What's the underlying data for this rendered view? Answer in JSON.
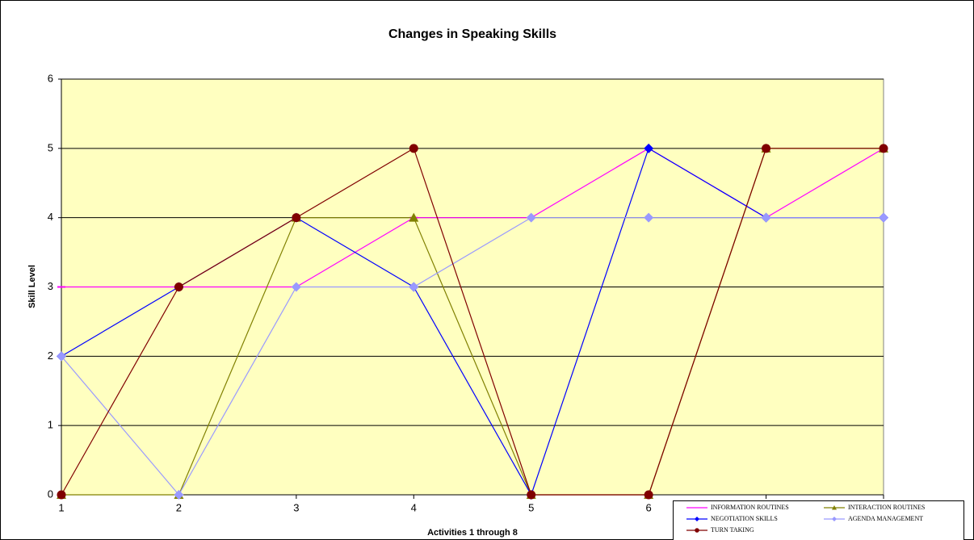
{
  "chart_data": {
    "type": "line",
    "title": "Changes in Speaking Skills",
    "x_label": "Activities 1 through 8",
    "y_label": "Skill Level",
    "x": [
      1,
      2,
      3,
      4,
      5,
      6,
      7,
      8
    ],
    "xlim": [
      1,
      8
    ],
    "xticks": [
      1,
      2,
      3,
      4,
      5,
      6,
      7,
      8
    ],
    "ylim": [
      0,
      6
    ],
    "yticks": [
      0,
      1,
      2,
      3,
      4,
      5,
      6
    ],
    "grid": true,
    "legend": "bottom right",
    "series": [
      {
        "name": "INFORMATION ROUTINES",
        "color": "#ff00ff",
        "marker": "dash",
        "values": [
          3,
          3,
          3,
          4,
          4,
          5,
          4,
          5
        ]
      },
      {
        "name": "INTERACTION ROUTINES",
        "color": "#808000",
        "marker": "triangle",
        "values": [
          0,
          0,
          4,
          4,
          0,
          0,
          5,
          5
        ]
      },
      {
        "name": "NEGOTIATION SKILLS",
        "color": "#0000ff",
        "marker": "diamond",
        "values": [
          2,
          3,
          4,
          3,
          0,
          5,
          4,
          4
        ]
      },
      {
        "name": "AGENDA MANAGEMENT",
        "color": "#9999ff",
        "marker": "diamond",
        "values": [
          2,
          0,
          3,
          3,
          4,
          4,
          4,
          4
        ]
      },
      {
        "name": "TURN TAKING",
        "color": "#800000",
        "marker": "circle",
        "values": [
          0,
          3,
          4,
          5,
          0,
          0,
          5,
          5
        ]
      }
    ]
  }
}
